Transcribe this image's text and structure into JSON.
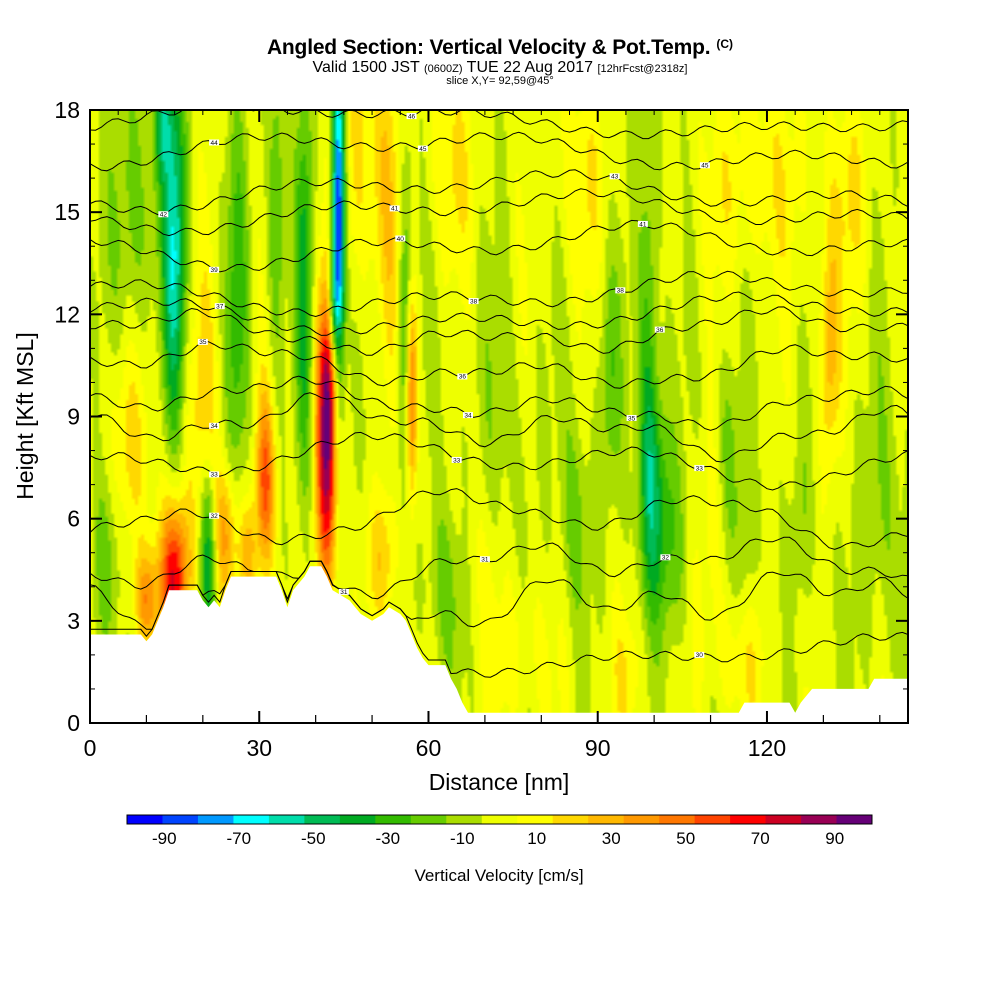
{
  "header": {
    "title": "Angled Section: Vertical Velocity & Pot.Temp.",
    "title_suffix": "(C)",
    "valid_prefix": "Valid 1500 JST",
    "valid_utc": "(0600Z)",
    "valid_date": "TUE 22 Aug 2017",
    "forecast": "[12hrFcst@2318z]",
    "slice": "slice X,Y= 92,59@45°"
  },
  "chart_data": {
    "type": "heatmap",
    "xlabel": "Distance [nm]",
    "ylabel": "Height [Kft MSL]",
    "xlim": [
      0,
      145
    ],
    "ylim": [
      0,
      18
    ],
    "x_ticks": [
      0,
      30,
      60,
      90,
      120
    ],
    "y_ticks": [
      0,
      3,
      6,
      9,
      12,
      15,
      18
    ],
    "colorbar": {
      "label": "Vertical Velocity [cm/s]",
      "min": -100,
      "max": 100,
      "step": 10,
      "ticks": [
        -90,
        -70,
        -50,
        -30,
        -10,
        10,
        30,
        50,
        70,
        90
      ],
      "colors": [
        "#0000ff",
        "#0044ff",
        "#0099ff",
        "#00ffff",
        "#00ddaa",
        "#00bb55",
        "#00aa22",
        "#33bb00",
        "#66cc00",
        "#aadd00",
        "#eeff00",
        "#ffff00",
        "#ffd800",
        "#ffb800",
        "#ff9900",
        "#ff7700",
        "#ff4400",
        "#ff0000",
        "#cc0022",
        "#990055",
        "#660077"
      ]
    },
    "updrafts": [
      {
        "x": 15,
        "y": 4.3,
        "w": 2.6,
        "h": 2.2,
        "v": 75
      },
      {
        "x": 10,
        "y": 3.6,
        "w": 2.2,
        "h": 1.5,
        "v": 45
      },
      {
        "x": 24,
        "y": 5.5,
        "w": 2.2,
        "h": 2.0,
        "v": 40
      },
      {
        "x": 31,
        "y": 7.0,
        "w": 1.7,
        "h": 2.6,
        "v": 60
      },
      {
        "x": 28,
        "y": 5.0,
        "w": 1.6,
        "h": 1.5,
        "v": 30
      },
      {
        "x": 42,
        "y": 8.3,
        "w": 1.9,
        "h": 4.2,
        "v": 100
      },
      {
        "x": 43,
        "y": 10.5,
        "w": 1.5,
        "h": 1.8,
        "v": 40
      },
      {
        "x": 57,
        "y": 9.6,
        "w": 1.0,
        "h": 3.2,
        "v": 65
      },
      {
        "x": 52,
        "y": 4.8,
        "w": 3.0,
        "h": 2.0,
        "v": 25
      },
      {
        "x": 6,
        "y": 8.0,
        "w": 4.5,
        "h": 3.0,
        "v": 22
      },
      {
        "x": 20,
        "y": 9.0,
        "w": 3.0,
        "h": 4.0,
        "v": 20
      },
      {
        "x": 48,
        "y": 16.5,
        "w": 5.0,
        "h": 4.0,
        "v": 20
      },
      {
        "x": 53,
        "y": 15.0,
        "w": 2.5,
        "h": 5.0,
        "v": 18
      },
      {
        "x": 64,
        "y": 16.5,
        "w": 4.0,
        "h": 3.0,
        "v": 18
      },
      {
        "x": 87,
        "y": 16.0,
        "w": 5.0,
        "h": 3.0,
        "v": 15
      },
      {
        "x": 118,
        "y": 16.0,
        "w": 10.0,
        "h": 3.0,
        "v": 15
      },
      {
        "x": 131,
        "y": 11.0,
        "w": 1.8,
        "h": 3.5,
        "v": 35
      },
      {
        "x": 135,
        "y": 15.5,
        "w": 3.5,
        "h": 3.0,
        "v": 15
      },
      {
        "x": 68,
        "y": 5.0,
        "w": 5.0,
        "h": 3.0,
        "v": 10
      },
      {
        "x": 115,
        "y": 2.0,
        "w": 6.0,
        "h": 2.0,
        "v": 15
      },
      {
        "x": 110,
        "y": 5.5,
        "w": 3.0,
        "h": 3.0,
        "v": 12
      },
      {
        "x": 76,
        "y": 2.0,
        "w": 6.0,
        "h": 2.5,
        "v": 12
      },
      {
        "x": 96,
        "y": 1.5,
        "w": 5.0,
        "h": 2.0,
        "v": 12
      }
    ],
    "downdrafts": [
      {
        "x": 15,
        "y": 14.0,
        "w": 2.0,
        "h": 5.0,
        "v": -60
      },
      {
        "x": 13,
        "y": 17.5,
        "w": 1.5,
        "h": 1.5,
        "v": -40
      },
      {
        "x": 21,
        "y": 5.0,
        "w": 1.5,
        "h": 2.5,
        "v": -45
      },
      {
        "x": 44,
        "y": 14.5,
        "w": 1.2,
        "h": 5.5,
        "v": -110
      },
      {
        "x": 43,
        "y": 11.5,
        "w": 1.0,
        "h": 2.0,
        "v": -45
      },
      {
        "x": 38,
        "y": 13.0,
        "w": 1.5,
        "h": 6.0,
        "v": -35
      },
      {
        "x": 33,
        "y": 15.0,
        "w": 1.5,
        "h": 5.0,
        "v": -25
      },
      {
        "x": 26,
        "y": 12.0,
        "w": 2.0,
        "h": 6.0,
        "v": -25
      },
      {
        "x": 56,
        "y": 11.5,
        "w": 1.5,
        "h": 6.0,
        "v": -30
      },
      {
        "x": 99,
        "y": 10.5,
        "w": 1.8,
        "h": 8.0,
        "v": -30
      },
      {
        "x": 92,
        "y": 10.0,
        "w": 2.0,
        "h": 3.5,
        "v": -20
      },
      {
        "x": 100,
        "y": 7.0,
        "w": 2.5,
        "h": 3.0,
        "v": -30
      },
      {
        "x": 103,
        "y": 5.0,
        "w": 3.0,
        "h": 3.0,
        "v": -20
      },
      {
        "x": 86,
        "y": 6.0,
        "w": 2.5,
        "h": 3.0,
        "v": -18
      },
      {
        "x": 113,
        "y": 8.0,
        "w": 2.0,
        "h": 3.0,
        "v": -18
      },
      {
        "x": 116,
        "y": 5.0,
        "w": 2.0,
        "h": 3.0,
        "v": -15
      },
      {
        "x": 126,
        "y": 6.0,
        "w": 2.0,
        "h": 3.0,
        "v": -12
      },
      {
        "x": 63,
        "y": 4.0,
        "w": 3.5,
        "h": 2.5,
        "v": -20
      },
      {
        "x": 3,
        "y": 5.0,
        "w": 2.5,
        "h": 3.5,
        "v": -25
      },
      {
        "x": 8,
        "y": 15.0,
        "w": 4.0,
        "h": 4.0,
        "v": -20
      },
      {
        "x": 140,
        "y": 6.0,
        "w": 5.0,
        "h": 4.0,
        "v": -12
      },
      {
        "x": 72,
        "y": 8.0,
        "w": 8.0,
        "h": 4.0,
        "v": -8
      }
    ],
    "terrain_profile": [
      [
        0,
        2.6
      ],
      [
        9,
        2.6
      ],
      [
        10,
        2.4
      ],
      [
        11,
        2.6
      ],
      [
        12,
        3.0
      ],
      [
        13,
        3.4
      ],
      [
        14,
        3.9
      ],
      [
        19,
        3.9
      ],
      [
        20,
        3.6
      ],
      [
        21,
        3.4
      ],
      [
        22,
        3.6
      ],
      [
        23,
        3.4
      ],
      [
        24,
        3.9
      ],
      [
        25,
        4.3
      ],
      [
        33,
        4.3
      ],
      [
        34,
        3.9
      ],
      [
        35,
        3.4
      ],
      [
        36,
        3.9
      ],
      [
        38,
        4.3
      ],
      [
        39,
        4.6
      ],
      [
        41,
        4.6
      ],
      [
        42,
        4.3
      ],
      [
        43,
        3.9
      ],
      [
        46,
        3.6
      ],
      [
        47,
        3.4
      ],
      [
        48,
        3.2
      ],
      [
        50,
        3.0
      ],
      [
        52,
        3.2
      ],
      [
        53,
        3.4
      ],
      [
        55,
        3.2
      ],
      [
        56,
        3.0
      ],
      [
        57,
        2.6
      ],
      [
        58,
        2.2
      ],
      [
        59,
        1.9
      ],
      [
        60,
        1.7
      ],
      [
        61,
        1.7
      ],
      [
        63,
        1.7
      ],
      [
        64,
        1.3
      ],
      [
        65,
        1.0
      ],
      [
        66,
        0.6
      ],
      [
        67,
        0.3
      ],
      [
        115,
        0.3
      ],
      [
        116,
        0.6
      ],
      [
        124,
        0.6
      ],
      [
        125,
        0.3
      ],
      [
        126,
        0.6
      ],
      [
        128,
        1.0
      ],
      [
        138,
        1.0
      ],
      [
        139,
        1.3
      ],
      [
        145,
        1.3
      ]
    ],
    "theta_contours": [
      {
        "base": 2.0,
        "amp": 0.2,
        "shift": 0,
        "labels": [
          [
            108,
            "30"
          ]
        ]
      },
      {
        "base": 3.5,
        "amp": 0.4,
        "shift": 0.4,
        "labels": [
          [
            45,
            "31"
          ]
        ]
      },
      {
        "base": 4.6,
        "amp": 0.4,
        "shift": 0.2,
        "labels": [
          [
            70,
            "31"
          ],
          [
            102,
            "32"
          ]
        ]
      },
      {
        "base": 6.0,
        "amp": 0.5,
        "shift": 0.1,
        "labels": [
          [
            22,
            "32"
          ]
        ]
      },
      {
        "base": 7.7,
        "amp": 0.4,
        "shift": 0.0,
        "labels": [
          [
            22,
            "33"
          ],
          [
            65,
            "33"
          ],
          [
            108,
            "33"
          ]
        ]
      },
      {
        "base": 8.7,
        "amp": 0.4,
        "shift": 0.2,
        "labels": [
          [
            22,
            "34"
          ]
        ]
      },
      {
        "base": 9.4,
        "amp": 0.3,
        "shift": 0.1,
        "labels": [
          [
            67,
            "34"
          ],
          [
            96,
            "35"
          ]
        ]
      },
      {
        "base": 10.5,
        "amp": 0.3,
        "shift": 0.1,
        "labels": [
          [
            20,
            "35"
          ],
          [
            66,
            "36"
          ]
        ]
      },
      {
        "base": 11.5,
        "amp": 0.3,
        "shift": 0.1,
        "labels": [
          [
            101,
            "36"
          ]
        ]
      },
      {
        "base": 12.0,
        "amp": 0.25,
        "shift": 0.0,
        "labels": [
          [
            23,
            "37"
          ]
        ]
      },
      {
        "base": 12.6,
        "amp": 0.25,
        "shift": 0.0,
        "labels": [
          [
            68,
            "38"
          ],
          [
            94,
            "38"
          ]
        ]
      },
      {
        "base": 14.0,
        "amp": 0.3,
        "shift": 0.0,
        "labels": [
          [
            22,
            "39"
          ],
          [
            55,
            "40"
          ],
          [
            98,
            "41"
          ]
        ]
      },
      {
        "base": 15.0,
        "amp": 0.25,
        "shift": 0.0,
        "labels": [
          [
            54,
            "41"
          ]
        ]
      },
      {
        "base": 15.6,
        "amp": 0.25,
        "shift": 0.0,
        "labels": [
          [
            13,
            "42"
          ],
          [
            93,
            "43"
          ]
        ]
      },
      {
        "base": 16.8,
        "amp": 0.25,
        "shift": 0.0,
        "labels": [
          [
            22,
            "44"
          ],
          [
            59,
            "45"
          ],
          [
            109,
            "45"
          ]
        ]
      },
      {
        "base": 17.7,
        "amp": 0.15,
        "shift": 0.0,
        "labels": [
          [
            57,
            "46"
          ]
        ]
      }
    ]
  }
}
